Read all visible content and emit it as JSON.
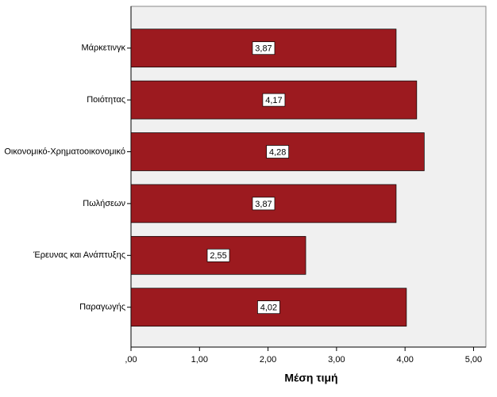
{
  "chart_data": {
    "type": "barh",
    "x_label": "Μέση τιμή",
    "categories": [
      "Μάρκετινγκ",
      "Ποιότητας",
      "Οικονομικό-Χρηματοοικονομικό",
      "Πωλήσεων",
      "Έρευνας και Ανάπτυξης",
      "Παραγωγής"
    ],
    "values": [
      3.87,
      4.17,
      4.28,
      3.87,
      2.55,
      4.02
    ],
    "value_labels": [
      "3,87",
      "4,17",
      "4,28",
      "3,87",
      "2,55",
      "4,02"
    ],
    "color": "#9c1a1f",
    "xlim": [
      0,
      5.18
    ],
    "xticks": [
      {
        "value": 0,
        "label": ",00"
      },
      {
        "value": 1,
        "label": "1,00"
      },
      {
        "value": 2,
        "label": "2,00"
      },
      {
        "value": 3,
        "label": "3,00"
      },
      {
        "value": 4,
        "label": "4,00"
      },
      {
        "value": 5,
        "label": "5,00"
      }
    ]
  }
}
